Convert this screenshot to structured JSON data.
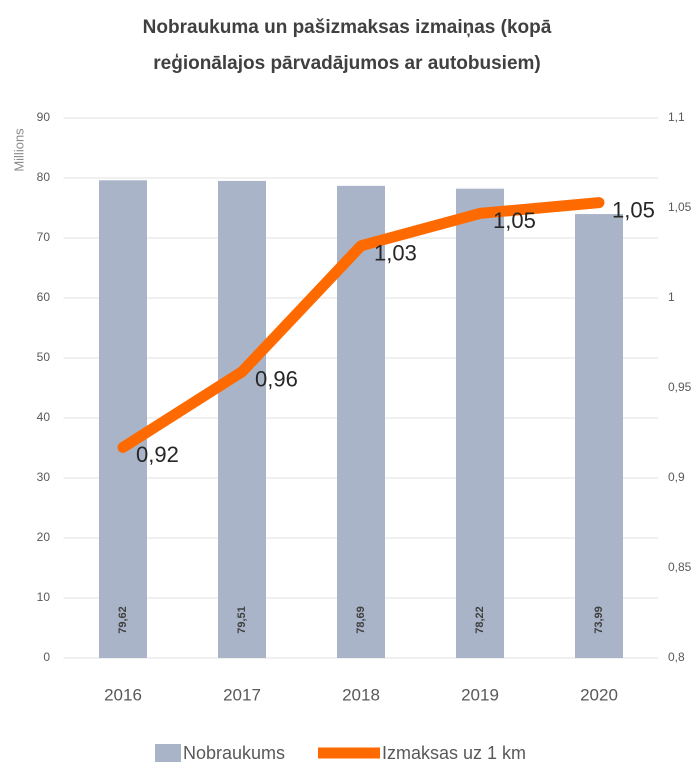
{
  "chart_data": {
    "type": "combo",
    "title": "Nobraukuma un pašizmaksas izmaiņas (kopā",
    "subtitle": "reģionālajos pārvadājumos ar autobusiem)",
    "y_label": "Millions",
    "categories": [
      "2016",
      "2017",
      "2018",
      "2019",
      "2020"
    ],
    "series": [
      {
        "name": "Nobraukums",
        "type": "bar",
        "color": "#a9b4c8",
        "values": [
          79.62,
          79.51,
          78.69,
          78.22,
          73.99
        ],
        "value_labels": [
          "79,62",
          "79,51",
          "78,69",
          "78,22",
          "73,99"
        ]
      },
      {
        "name": "Izmaksas uz 1 km",
        "type": "line",
        "axis": "y2",
        "color": "#ff6a00",
        "values": [
          0.917,
          0.959,
          1.029,
          1.047,
          1.053
        ],
        "value_labels": [
          "0,92",
          "0,96",
          "1,03",
          "1,05",
          "1,05"
        ]
      }
    ],
    "ylim": [
      0,
      90
    ],
    "yticks": [
      0,
      10,
      20,
      30,
      40,
      50,
      60,
      70,
      80,
      90
    ],
    "y2lim": [
      0.8,
      1.1
    ],
    "y2ticks": [
      {
        "value": 0.8,
        "label": "0,8"
      },
      {
        "value": 0.85,
        "label": "0,85"
      },
      {
        "value": 0.9,
        "label": "0,9"
      },
      {
        "value": 0.95,
        "label": "0,95"
      },
      1,
      {
        "value": 1.05,
        "label": "1,05"
      },
      {
        "value": 1.1,
        "label": "1,1"
      }
    ],
    "grid": true,
    "legend": "bottom"
  }
}
